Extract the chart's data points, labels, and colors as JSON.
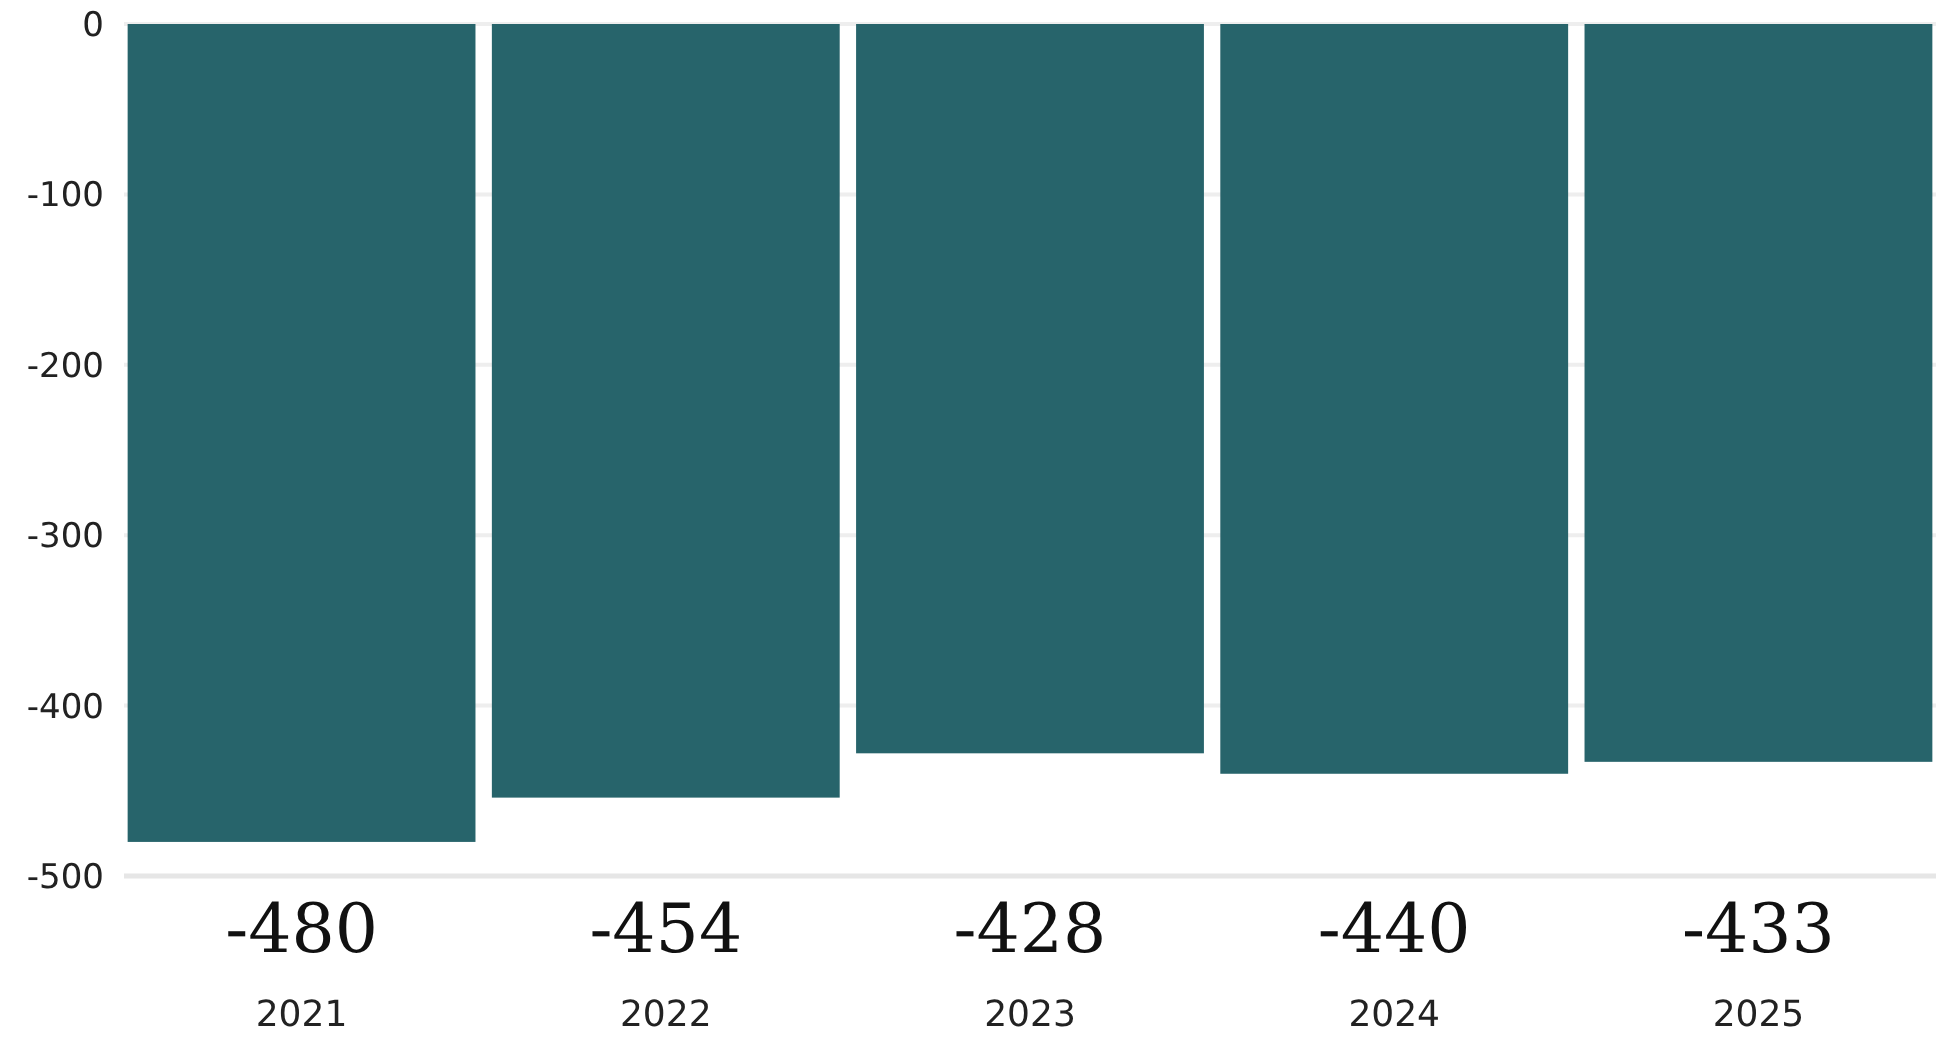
{
  "chart_data": {
    "type": "bar",
    "categories": [
      "2021",
      "2022",
      "2023",
      "2024",
      "2025"
    ],
    "values": [
      -480,
      -454,
      -428,
      -440,
      -433
    ],
    "color": "#27646b",
    "ylim": [
      -500,
      0
    ],
    "yticks": [
      -500,
      -400,
      -300,
      -200,
      -100,
      0
    ],
    "grid": "y",
    "data_labels": true
  }
}
